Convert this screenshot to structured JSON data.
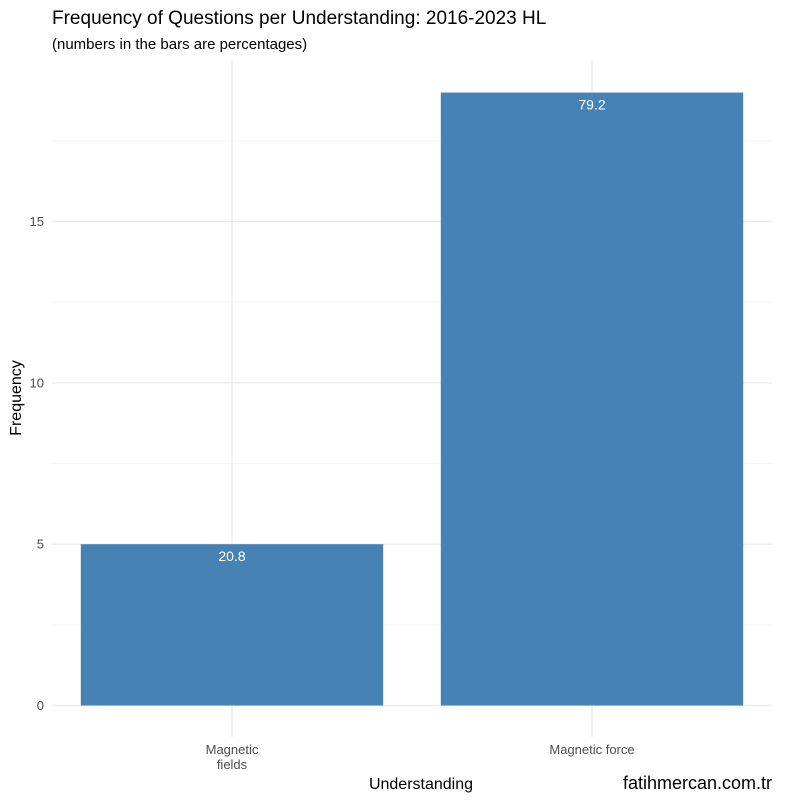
{
  "chart_data": {
    "type": "bar",
    "title": "Frequency of Questions per Understanding: 2016-2023 HL",
    "subtitle": "(numbers in the bars are percentages)",
    "xlabel": "Understanding",
    "ylabel": "Frequency",
    "categories": [
      "Magnetic\nfields",
      "Magnetic force"
    ],
    "values": [
      5,
      19
    ],
    "bar_labels": [
      "20.8",
      "79.2"
    ],
    "ylim": [
      0,
      20
    ],
    "y_ticks": [
      0,
      5,
      10,
      15
    ],
    "y_tick_labels": [
      "0",
      "5",
      "10",
      "15"
    ],
    "bar_color": "#4682b4",
    "grid": true,
    "legend": "none"
  },
  "watermark": "fatihmercan.com.tr"
}
